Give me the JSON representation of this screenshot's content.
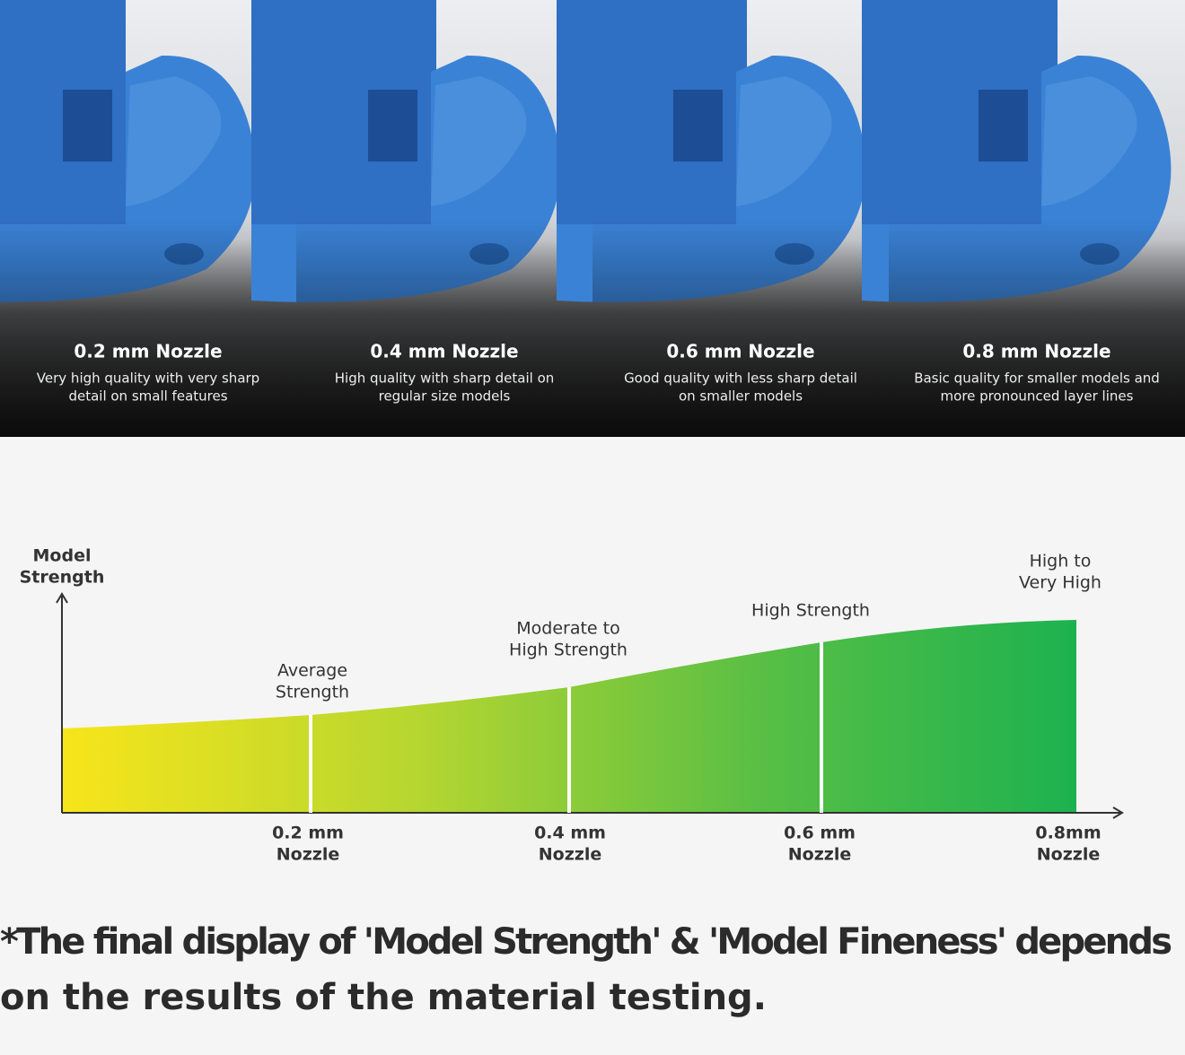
{
  "panels": [
    {
      "title": "0.2 mm Nozzle",
      "description": [
        "Very high quality with very sharp",
        "detail on small features"
      ]
    },
    {
      "title": "0.4 mm Nozzle",
      "description": [
        "High quality with sharp detail on",
        "regular size models"
      ]
    },
    {
      "title": "0.6 mm Nozzle",
      "description": [
        "Good quality with less sharp detail",
        "on smaller models"
      ]
    },
    {
      "title": "0.8 mm Nozzle",
      "description": [
        "Basic quality for smaller models and",
        "more pronounced layer lines"
      ]
    }
  ],
  "strength_chart": {
    "y_axis_label": [
      "Model",
      "Strength"
    ],
    "levels": [
      {
        "label": [
          "Average",
          "Strength"
        ],
        "nozzle": [
          "0.2 mm",
          "Nozzle"
        ]
      },
      {
        "label": [
          "Moderate to",
          "High Strength"
        ],
        "nozzle": [
          "0.4 mm",
          "Nozzle"
        ]
      },
      {
        "label": [
          "High Strength"
        ],
        "nozzle": [
          "0.6 mm",
          "Nozzle"
        ]
      },
      {
        "label": [
          "High to",
          "Very High"
        ],
        "nozzle": [
          "0.8mm",
          "Nozzle"
        ]
      }
    ]
  },
  "footnote": [
    "*The final display of 'Model Strength' & 'Model Fineness' depends",
    "on the results of the material testing."
  ]
}
